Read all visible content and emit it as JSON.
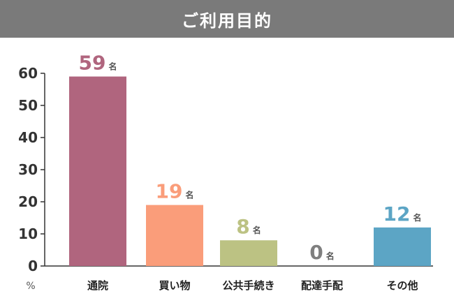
{
  "chart_data": {
    "type": "bar",
    "title": "ご利用目的",
    "categories": [
      "通院",
      "買い物",
      "公共手続き",
      "配達手配",
      "その他"
    ],
    "values": [
      59,
      19,
      8,
      0,
      12
    ],
    "value_unit": "名",
    "ylabel": "%",
    "ylim": [
      0,
      60
    ],
    "yticks": [
      0,
      10,
      20,
      30,
      40,
      50,
      60
    ],
    "grid": false,
    "colors": [
      "#b0657e",
      "#fa9d7a",
      "#bcc283",
      "#7f7f7f",
      "#5ca5c5"
    ]
  }
}
